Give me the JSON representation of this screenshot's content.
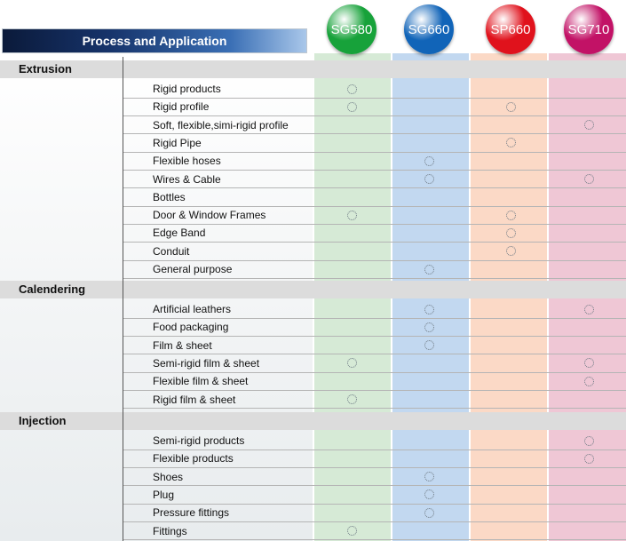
{
  "header": {
    "title": "Process and Application"
  },
  "products": [
    {
      "code": "SG580",
      "color": "#17a23a",
      "tint": "#d6ead6"
    },
    {
      "code": "SG660",
      "color": "#1164b8",
      "tint": "#c2d8f0"
    },
    {
      "code": "SP660",
      "color": "#e0121c",
      "tint": "#fbd9c6"
    },
    {
      "code": "SG710",
      "color": "#c21266",
      "tint": "#efc7d5"
    }
  ],
  "sections": [
    {
      "title": "Extrusion",
      "rows": [
        {
          "label": "Rigid products",
          "marks": [
            true,
            false,
            false,
            false
          ]
        },
        {
          "label": "Rigid profile",
          "marks": [
            true,
            false,
            true,
            false
          ]
        },
        {
          "label": "Soft, flexible,simi-rigid profile",
          "marks": [
            false,
            false,
            false,
            true
          ]
        },
        {
          "label": "Rigid Pipe",
          "marks": [
            false,
            false,
            true,
            false
          ]
        },
        {
          "label": "Flexible hoses",
          "marks": [
            false,
            true,
            false,
            false
          ]
        },
        {
          "label": "Wires & Cable",
          "marks": [
            false,
            true,
            false,
            true
          ]
        },
        {
          "label": "Bottles",
          "marks": [
            false,
            false,
            false,
            false
          ]
        },
        {
          "label": "Door & Window Frames",
          "marks": [
            true,
            false,
            true,
            false
          ]
        },
        {
          "label": "Edge Band",
          "marks": [
            false,
            false,
            true,
            false
          ]
        },
        {
          "label": "Conduit",
          "marks": [
            false,
            false,
            true,
            false
          ]
        },
        {
          "label": "General purpose",
          "marks": [
            false,
            true,
            false,
            false
          ]
        }
      ]
    },
    {
      "title": "Calendering",
      "rows": [
        {
          "label": "Artificial leathers",
          "marks": [
            false,
            true,
            false,
            true
          ]
        },
        {
          "label": "Food packaging",
          "marks": [
            false,
            true,
            false,
            false
          ]
        },
        {
          "label": "Film & sheet",
          "marks": [
            false,
            true,
            false,
            false
          ]
        },
        {
          "label": "Semi-rigid film & sheet",
          "marks": [
            true,
            false,
            false,
            true
          ]
        },
        {
          "label": "Flexible film & sheet",
          "marks": [
            false,
            false,
            false,
            true
          ]
        },
        {
          "label": "Rigid film & sheet",
          "marks": [
            true,
            false,
            false,
            false
          ]
        }
      ]
    },
    {
      "title": "Injection",
      "rows": [
        {
          "label": "Semi-rigid products",
          "marks": [
            false,
            false,
            false,
            true
          ]
        },
        {
          "label": "Flexible products",
          "marks": [
            false,
            false,
            false,
            true
          ]
        },
        {
          "label": "Shoes",
          "marks": [
            false,
            true,
            false,
            false
          ]
        },
        {
          "label": "Plug",
          "marks": [
            false,
            true,
            false,
            false
          ]
        },
        {
          "label": "Pressure fittings",
          "marks": [
            false,
            true,
            false,
            false
          ]
        },
        {
          "label": "Fittings",
          "marks": [
            true,
            false,
            false,
            false
          ]
        }
      ]
    }
  ]
}
